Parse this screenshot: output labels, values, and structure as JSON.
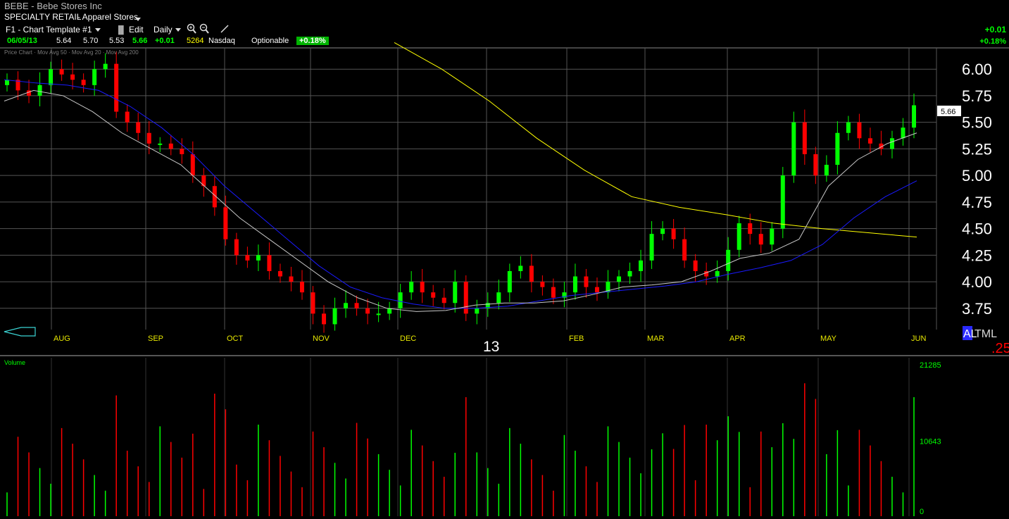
{
  "header": {
    "title": "BEBE - Bebe Stores Inc",
    "sector": "SPECIALTY RETAIL",
    "industry": "- Apparel Stores"
  },
  "toolbar": {
    "template": "F1 - Chart Template #1",
    "edit_label": "Edit",
    "period": "Daily"
  },
  "quote": {
    "date": "06/05/13",
    "open": "5.64",
    "high": "5.70",
    "low": "5.53",
    "last": "5.66",
    "change": "+0.01",
    "volume": "5264",
    "exchange": "Nasdaq",
    "optionable": "Optionable",
    "pct_badge": "+0.18%",
    "right_change": "+0.01",
    "right_pct": "+0.18%"
  },
  "price_legend": "Price Chart · Mov Avg 50 · Mov Avg 20 · Mov Avg 200",
  "volume_label": "Volume",
  "last_price_tag": "5.66",
  "year_marker": "13",
  "symbol_buttons": [
    "AL",
    "TML"
  ],
  "corner_value": ".25",
  "colors": {
    "up": "#00ff00",
    "down": "#ff0000",
    "ma20": "#c8c8c8",
    "ma50": "#1a1aff",
    "ma200": "#ffff00",
    "grid": "#555555"
  },
  "chart_data": {
    "type": "candlestick",
    "x_labels": [
      "AUG",
      "SEP",
      "OCT",
      "NOV",
      "DEC",
      "13",
      "FEB",
      "MAR",
      "APR",
      "MAY",
      "JUN"
    ],
    "y_ticks": [
      "6.00",
      "5.75",
      "5.50",
      "5.25",
      "5.00",
      "4.75",
      "4.50",
      "4.25",
      "4.00",
      "3.75"
    ],
    "ylim": [
      3.55,
      6.2
    ],
    "volume_ticks": [
      "21285",
      "10643",
      "0"
    ],
    "volume_max": 21285,
    "close_series_approx": [
      5.9,
      5.8,
      5.75,
      5.85,
      6.0,
      5.95,
      5.9,
      5.85,
      6.0,
      6.05,
      5.6,
      5.5,
      5.4,
      5.3,
      5.3,
      5.25,
      5.2,
      5.0,
      4.9,
      4.7,
      4.4,
      4.25,
      4.2,
      4.25,
      4.1,
      4.05,
      4.0,
      3.9,
      3.7,
      3.6,
      3.75,
      3.8,
      3.75,
      3.7,
      3.7,
      3.75,
      3.9,
      4.0,
      3.9,
      3.85,
      3.8,
      4.0,
      3.7,
      3.75,
      3.8,
      3.9,
      4.1,
      4.15,
      4.0,
      3.95,
      3.85,
      3.9,
      4.05,
      3.95,
      3.9,
      4.0,
      4.05,
      4.1,
      4.2,
      4.45,
      4.5,
      4.4,
      4.2,
      4.1,
      4.05,
      4.1,
      4.3,
      4.55,
      4.45,
      4.35,
      4.5,
      5.0,
      5.5,
      5.2,
      5.0,
      5.1,
      5.4,
      5.5,
      5.35,
      5.3,
      5.25,
      5.35,
      5.45,
      5.66
    ],
    "ma20_approx": [
      5.7,
      5.8,
      5.75,
      5.6,
      5.4,
      5.25,
      5.1,
      4.85,
      4.6,
      4.4,
      4.2,
      4.0,
      3.85,
      3.75,
      3.72,
      3.73,
      3.78,
      3.8,
      3.8,
      3.82,
      3.88,
      3.95,
      3.97,
      4.0,
      4.1,
      4.22,
      4.27,
      4.4,
      4.9,
      5.15,
      5.3,
      5.4
    ],
    "ma50_approx": [
      5.9,
      5.87,
      5.85,
      5.8,
      5.65,
      5.45,
      5.2,
      4.9,
      4.65,
      4.4,
      4.15,
      3.95,
      3.85,
      3.79,
      3.75,
      3.75,
      3.77,
      3.82,
      3.87,
      3.9,
      3.93,
      3.96,
      4.0,
      4.07,
      4.13,
      4.2,
      4.35,
      4.6,
      4.8,
      4.95
    ],
    "ma200_approx": [
      6.25,
      6.0,
      5.7,
      5.35,
      5.05,
      4.8,
      4.7,
      4.63,
      4.55,
      4.5,
      4.46,
      4.42
    ]
  }
}
